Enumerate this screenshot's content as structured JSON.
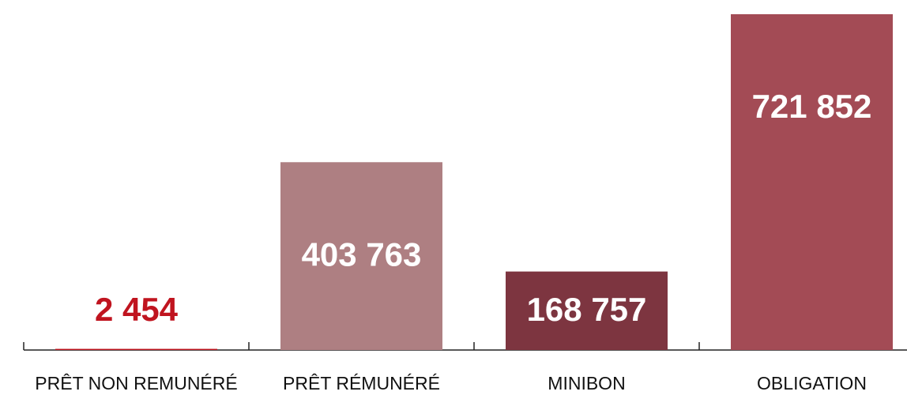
{
  "chart_data": {
    "type": "bar",
    "categories": [
      "PRÊT NON REMUNÉRÉ",
      "PRÊT RÉMUNÉRÉ",
      "MINIBON",
      "OBLIGATION"
    ],
    "values": [
      2454,
      403763,
      168757,
      721852
    ],
    "value_labels": [
      "2 454",
      "403 763",
      "168 757",
      "721 852"
    ],
    "colors": [
      "#c0141f",
      "#ae7f82",
      "#7d3540",
      "#a34b55"
    ]
  }
}
